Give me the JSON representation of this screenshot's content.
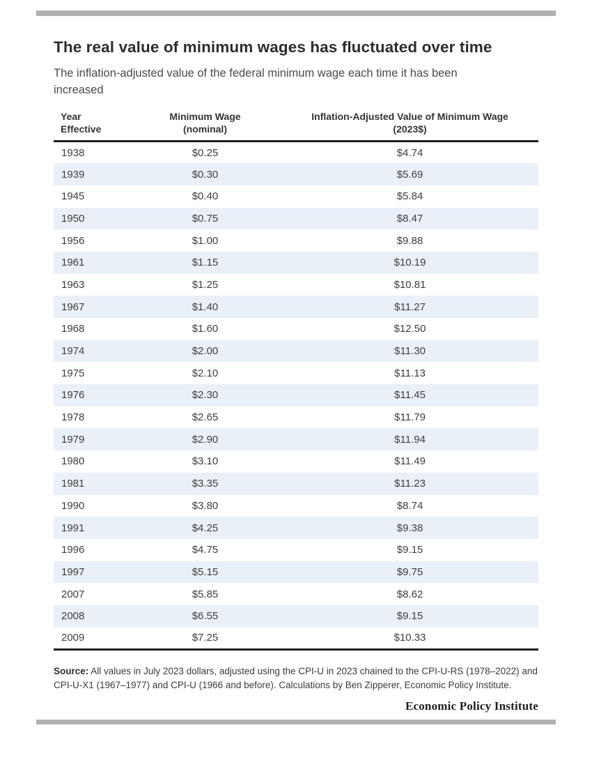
{
  "header": {
    "title": "The real value of minimum wages has fluctuated over time",
    "subtitle": "The inflation-adjusted value of the federal minimum wage each time it has been increased"
  },
  "chart_data": {
    "type": "table",
    "title": "The real value of minimum wages has fluctuated over time",
    "subtitle": "The inflation-adjusted value of the federal minimum wage each time it has been increased",
    "columns": [
      {
        "line1": "Year",
        "line2": "Effective"
      },
      {
        "line1": "Minimum Wage",
        "line2": "(nominal)"
      },
      {
        "line1": "Inflation-Adjusted Value of Minimum Wage",
        "line2": "(2023$)"
      }
    ],
    "rows": [
      {
        "year": "1938",
        "nominal": "$0.25",
        "real_2023": "$4.74"
      },
      {
        "year": "1939",
        "nominal": "$0.30",
        "real_2023": "$5.69"
      },
      {
        "year": "1945",
        "nominal": "$0.40",
        "real_2023": "$5.84"
      },
      {
        "year": "1950",
        "nominal": "$0.75",
        "real_2023": "$8.47"
      },
      {
        "year": "1956",
        "nominal": "$1.00",
        "real_2023": "$9.88"
      },
      {
        "year": "1961",
        "nominal": "$1.15",
        "real_2023": "$10.19"
      },
      {
        "year": "1963",
        "nominal": "$1.25",
        "real_2023": "$10.81"
      },
      {
        "year": "1967",
        "nominal": "$1.40",
        "real_2023": "$11.27"
      },
      {
        "year": "1968",
        "nominal": "$1.60",
        "real_2023": "$12.50"
      },
      {
        "year": "1974",
        "nominal": "$2.00",
        "real_2023": "$11.30"
      },
      {
        "year": "1975",
        "nominal": "$2.10",
        "real_2023": "$11.13"
      },
      {
        "year": "1976",
        "nominal": "$2.30",
        "real_2023": "$11.45"
      },
      {
        "year": "1978",
        "nominal": "$2.65",
        "real_2023": "$11.79"
      },
      {
        "year": "1979",
        "nominal": "$2.90",
        "real_2023": "$11.94"
      },
      {
        "year": "1980",
        "nominal": "$3.10",
        "real_2023": "$11.49"
      },
      {
        "year": "1981",
        "nominal": "$3.35",
        "real_2023": "$11.23"
      },
      {
        "year": "1990",
        "nominal": "$3.80",
        "real_2023": "$8.74"
      },
      {
        "year": "1991",
        "nominal": "$4.25",
        "real_2023": "$9.38"
      },
      {
        "year": "1996",
        "nominal": "$4.75",
        "real_2023": "$9.15"
      },
      {
        "year": "1997",
        "nominal": "$5.15",
        "real_2023": "$9.75"
      },
      {
        "year": "2007",
        "nominal": "$5.85",
        "real_2023": "$8.62"
      },
      {
        "year": "2008",
        "nominal": "$6.55",
        "real_2023": "$9.15"
      },
      {
        "year": "2009",
        "nominal": "$7.25",
        "real_2023": "$10.33"
      }
    ]
  },
  "footer": {
    "source_label": "Source:",
    "source_text": "All values in July 2023 dollars, adjusted using the CPI-U in 2023 chained to the CPI-U-RS (1978–2022) and CPI-U-X1 (1967–1977) and CPI-U (1966 and before). Calculations by Ben Zipperer, Economic Policy Institute.",
    "branding": "Economic Policy Institute"
  },
  "colors": {
    "row_stripe": "#e9f0f8",
    "rule_gray": "#b1b1b1",
    "border_dark": "#1f1f1f"
  }
}
